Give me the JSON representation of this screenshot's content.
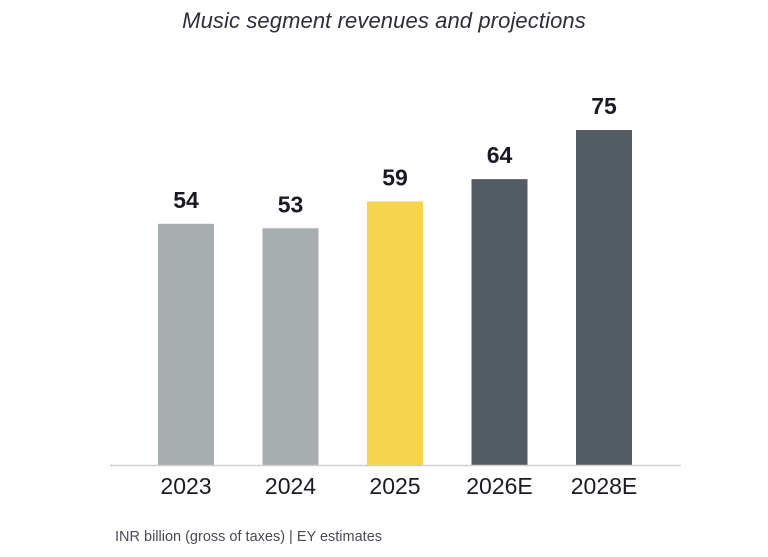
{
  "chart_data": {
    "type": "bar",
    "title": "Music segment revenues and projections",
    "categories": [
      "2023",
      "2024",
      "2025",
      "2026E",
      "2028E"
    ],
    "values": [
      54,
      53,
      59,
      64,
      75
    ],
    "value_labels": [
      "54",
      "53",
      "59",
      "64",
      "75"
    ],
    "bar_colors": [
      "#a7acaf",
      "#a7acaf",
      "#f6d44b",
      "#535b63",
      "#535b63"
    ],
    "xlabel": "",
    "ylabel": "",
    "ylim": [
      0,
      75
    ],
    "grid": false,
    "legend": "none",
    "note": "INR billion (gross of taxes) | EY estimates"
  },
  "colors": {
    "axis": "#cfcfcf",
    "text": "#1a1a24"
  }
}
